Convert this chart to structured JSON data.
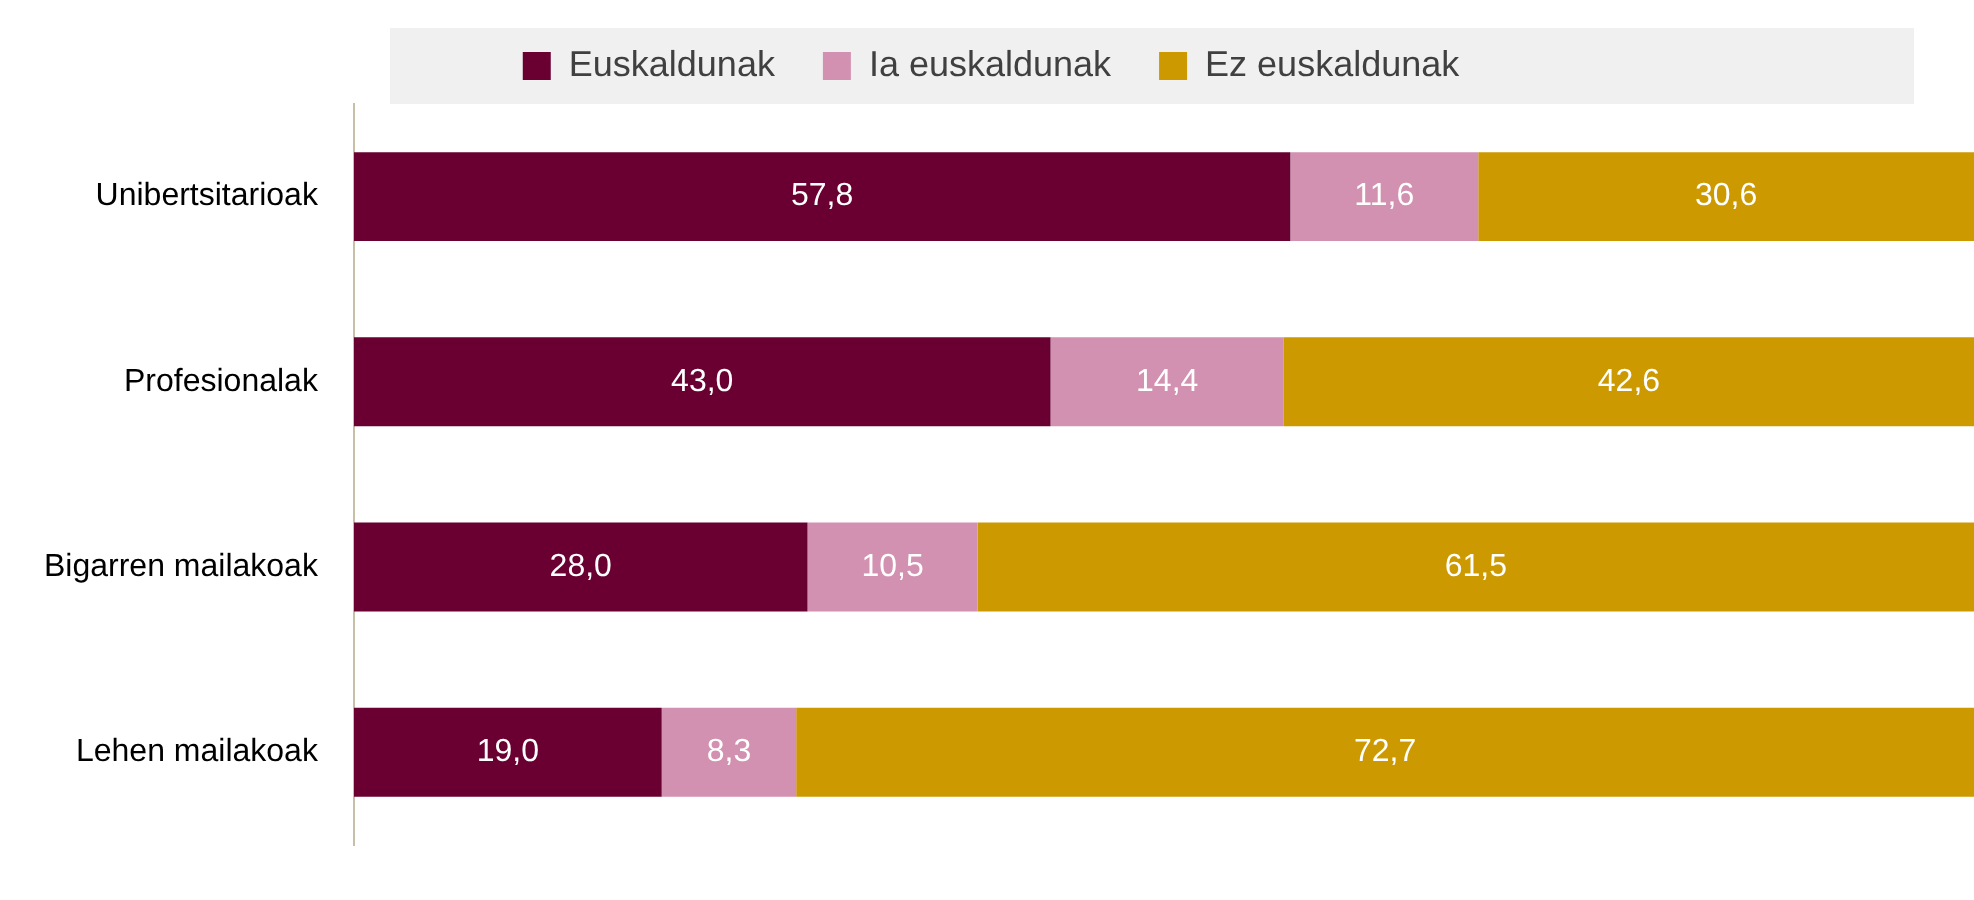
{
  "chart_data": {
    "type": "bar",
    "orientation": "horizontal",
    "stacked": true,
    "categories": [
      "Unibertsitarioak",
      "Profesionalak",
      "Bigarren mailakoak",
      "Lehen mailakoak"
    ],
    "xlim": [
      0,
      100
    ],
    "tick_labels": "y",
    "legend": "top",
    "series": [
      {
        "name": "Euskaldunak",
        "color": "#6a0032",
        "values": [
          57.8,
          43.0,
          28.0,
          19.0
        ],
        "value_labels": [
          "57,8",
          "43,0",
          "28,0",
          "19,0"
        ]
      },
      {
        "name": "Ia euskaldunak",
        "color": "#d291b0",
        "values": [
          11.6,
          14.4,
          10.5,
          8.3
        ],
        "value_labels": [
          "11,6",
          "14,4",
          "10,5",
          "8,3"
        ]
      },
      {
        "name": "Ez euskaldunak",
        "color": "#cc9900",
        "values": [
          30.6,
          42.6,
          61.5,
          72.7
        ],
        "value_labels": [
          "30,6",
          "42,6",
          "61,5",
          "72,7"
        ]
      }
    ]
  }
}
